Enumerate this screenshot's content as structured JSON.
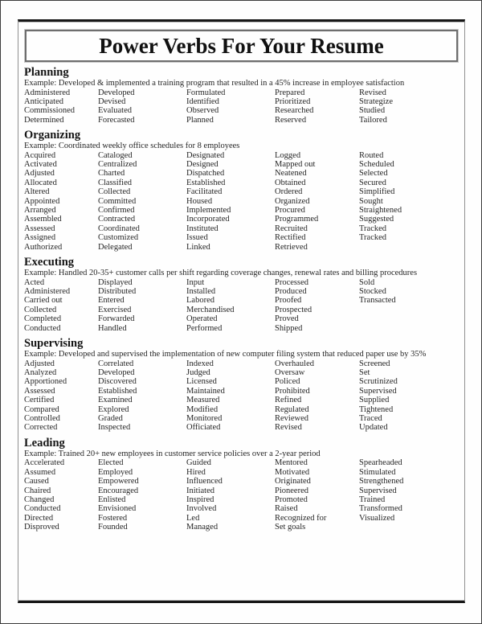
{
  "page": {
    "title": "Power Verbs For Your Resume"
  },
  "colors": {
    "text": "#262626",
    "rule_dark": "#161616",
    "rule_gray": "#909090",
    "title_border": "#6e6e6e"
  },
  "sections": [
    {
      "id": "planning",
      "heading": "Planning",
      "example": "Example: Developed & implemented a training program that resulted in a 45% increase in employee satisfaction",
      "rows": [
        [
          "Administered",
          "Developed",
          "Formulated",
          "Prepared",
          "Revised"
        ],
        [
          "Anticipated",
          "Devised",
          "Identified",
          "Prioritized",
          "Strategize"
        ],
        [
          "Commissioned",
          "Evaluated",
          "Observed",
          "Researched",
          "Studied"
        ],
        [
          "Determined",
          "Forecasted",
          "Planned",
          "Reserved",
          "Tailored"
        ]
      ]
    },
    {
      "id": "organizing",
      "heading": "Organizing",
      "example": "Example: Coordinated weekly office schedules for 8 employees",
      "rows": [
        [
          "Acquired",
          "Cataloged",
          "Designated",
          "Logged",
          "Routed"
        ],
        [
          "Activated",
          "Centralized",
          "Designed",
          "Mapped out",
          "Scheduled"
        ],
        [
          "Adjusted",
          "Charted",
          "Dispatched",
          "Neatened",
          "Selected"
        ],
        [
          "Allocated",
          "Classified",
          "Established",
          "Obtained",
          "Secured"
        ],
        [
          "Altered",
          "Collected",
          "Facilitated",
          "Ordered",
          "Simplified"
        ],
        [
          "Appointed",
          "Committed",
          "Housed",
          "Organized",
          "Sought"
        ],
        [
          "Arranged",
          "Confirmed",
          "Implemented",
          "Procured",
          "Straightened"
        ],
        [
          "Assembled",
          "Contracted",
          "Incorporated",
          "Programmed",
          "Suggested"
        ],
        [
          "Assessed",
          "Coordinated",
          "Instituted",
          "Recruited",
          "Tracked"
        ],
        [
          "Assigned",
          "Customized",
          "Issued",
          "Rectified",
          "Tracked"
        ],
        [
          "Authorized",
          "Delegated",
          "Linked",
          "Retrieved",
          ""
        ]
      ]
    },
    {
      "id": "executing",
      "heading": "Executing",
      "example": "Example: Handled 20-35+ customer calls per shift regarding coverage changes, renewal rates and billing procedures",
      "rows": [
        [
          "Acted",
          "Displayed",
          "Input",
          "Processed",
          "Sold"
        ],
        [
          "Administered",
          "Distributed",
          "Installed",
          "Produced",
          "Stocked"
        ],
        [
          "Carried out",
          "Entered",
          "Labored",
          "Proofed",
          "Transacted"
        ],
        [
          "Collected",
          "Exercised",
          "Merchandised",
          "Prospected",
          ""
        ],
        [
          "Completed",
          "Forwarded",
          "Operated",
          "Proved",
          ""
        ],
        [
          "Conducted",
          "Handled",
          "Performed",
          "Shipped",
          ""
        ]
      ]
    },
    {
      "id": "supervising",
      "heading": "Supervising",
      "example": "Example: Developed and supervised the implementation of new computer filing system that reduced paper use by 35%",
      "rows": [
        [
          "Adjusted",
          "Correlated",
          "Indexed",
          "Overhauled",
          "Screened"
        ],
        [
          "Analyzed",
          "Developed",
          "Judged",
          "Oversaw",
          "Set"
        ],
        [
          "Apportioned",
          "Discovered",
          "Licensed",
          "Policed",
          "Scrutinized"
        ],
        [
          "Assessed",
          "Established",
          "Maintained",
          "Prohibited",
          "Supervised"
        ],
        [
          "Certified",
          "Examined",
          "Measured",
          "Refined",
          "Supplied"
        ],
        [
          "Compared",
          "Explored",
          "Modified",
          "Regulated",
          "Tightened"
        ],
        [
          "Controlled",
          "Graded",
          "Monitored",
          "Reviewed",
          "Traced"
        ],
        [
          "Corrected",
          "Inspected",
          "Officiated",
          "Revised",
          "Updated"
        ]
      ]
    },
    {
      "id": "leading",
      "heading": "Leading",
      "example": "Example: Trained 20+ new employees in customer service policies over a 2-year period",
      "rows": [
        [
          "Accelerated",
          "Elected",
          "Guided",
          "Mentored",
          "Spearheaded"
        ],
        [
          "Assumed",
          "Employed",
          "Hired",
          "Motivated",
          "Stimulated"
        ],
        [
          "Caused",
          "Empowered",
          "Influenced",
          "Originated",
          "Strengthened"
        ],
        [
          "Chaired",
          "Encouraged",
          "Initiated",
          "Pioneered",
          "Supervised"
        ],
        [
          "Changed",
          "Enlisted",
          "Inspired",
          "Promoted",
          "Trained"
        ],
        [
          "Conducted",
          "Envisioned",
          "Involved",
          "Raised",
          "Transformed"
        ],
        [
          "Directed",
          "Fostered",
          "Led",
          "Recognized for",
          "Visualized"
        ],
        [
          "Disproved",
          "Founded",
          "Managed",
          "Set goals",
          ""
        ]
      ]
    }
  ]
}
